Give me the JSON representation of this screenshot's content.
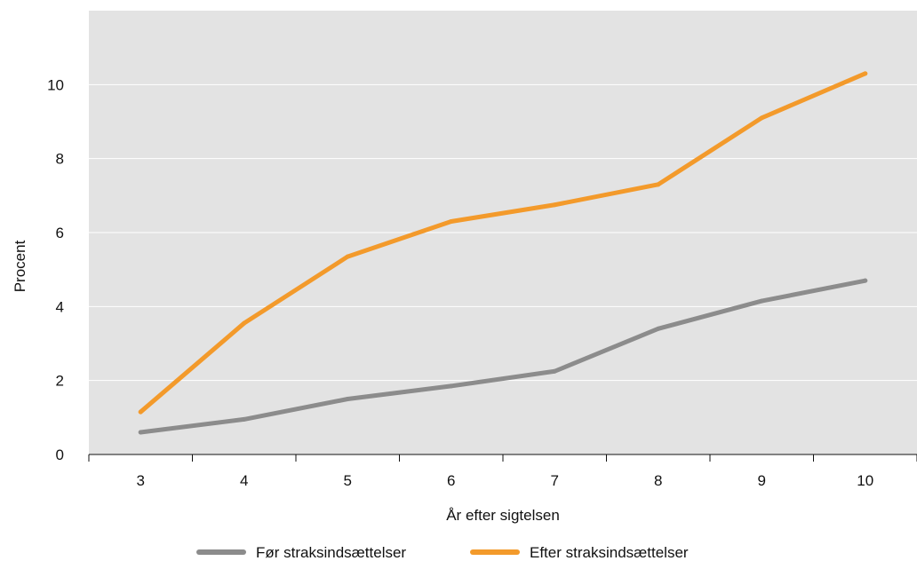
{
  "chart_data": {
    "type": "line",
    "title": "",
    "xlabel": "År efter sigtelsen",
    "ylabel": "Procent",
    "categories": [
      "3",
      "4",
      "5",
      "6",
      "7",
      "8",
      "9",
      "10"
    ],
    "ylim": [
      0,
      12
    ],
    "yticks": [
      "0",
      "2",
      "4",
      "6",
      "8",
      "10"
    ],
    "grid": true,
    "legend_position": "bottom",
    "series": [
      {
        "name": "Før straksindsættelser",
        "color": "#8c8c8c",
        "values": [
          0.6,
          0.95,
          1.5,
          1.85,
          2.25,
          3.4,
          4.15,
          4.7
        ]
      },
      {
        "name": "Efter straksindsættelser",
        "color": "#f39a2b",
        "values": [
          1.15,
          3.55,
          5.35,
          6.3,
          6.75,
          7.3,
          9.1,
          10.3
        ]
      }
    ],
    "plot_background": "#e3e3e3",
    "gridline_color": "#ffffff"
  }
}
